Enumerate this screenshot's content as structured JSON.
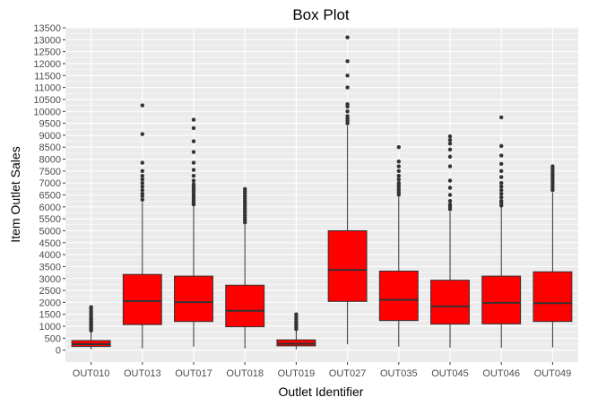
{
  "chart_data": {
    "type": "box",
    "title": "Box Plot",
    "xlabel": "Outlet Identifier",
    "ylabel": "Item Outlet Sales",
    "ylim": [
      -500,
      13500
    ],
    "yticks": [
      0,
      500,
      1000,
      1500,
      2000,
      2500,
      3000,
      3500,
      4000,
      4500,
      5000,
      5500,
      6000,
      6500,
      7000,
      7500,
      8000,
      8500,
      9000,
      9500,
      10000,
      10500,
      11000,
      11500,
      12000,
      12500,
      13000,
      13500
    ],
    "grid": true,
    "legend": "none",
    "colors": {
      "box_fill": "#ff0000",
      "box_stroke": "#333333",
      "panel": "#ebebeb",
      "grid": "#ffffff",
      "outlier": "#333333"
    },
    "categories": [
      "OUT010",
      "OUT013",
      "OUT017",
      "OUT018",
      "OUT019",
      "OUT027",
      "OUT035",
      "OUT045",
      "OUT046",
      "OUT049"
    ],
    "boxes": [
      {
        "category": "OUT010",
        "min": 33,
        "q1": 154,
        "median": 250,
        "q3": 400,
        "max": 770,
        "outliers": [
          820,
          870,
          920,
          970,
          1020,
          1070,
          1120,
          1170,
          1230,
          1290,
          1350,
          1450,
          1540,
          1620,
          1720,
          1800
        ]
      },
      {
        "category": "OUT013",
        "min": 73,
        "q1": 1070,
        "median": 2050,
        "q3": 3170,
        "max": 6200,
        "outliers": [
          6300,
          6450,
          6550,
          6700,
          6850,
          7000,
          7150,
          7300,
          7500,
          7850,
          9050,
          10250
        ]
      },
      {
        "category": "OUT017",
        "min": 143,
        "q1": 1200,
        "median": 2010,
        "q3": 3100,
        "max": 6050,
        "outliers": [
          6100,
          6150,
          6250,
          6350,
          6450,
          6550,
          6650,
          6750,
          6850,
          6950,
          7100,
          7300,
          7550,
          7850,
          8300,
          8750,
          9300,
          9650
        ]
      },
      {
        "category": "OUT018",
        "min": 69,
        "q1": 980,
        "median": 1650,
        "q3": 2720,
        "max": 5300,
        "outliers": [
          5350,
          5450,
          5550,
          5650,
          5750,
          5850,
          5950,
          6050,
          6150,
          6250,
          6350,
          6450,
          6550,
          6650,
          6750
        ]
      },
      {
        "category": "OUT019",
        "min": 33,
        "q1": 180,
        "median": 270,
        "q3": 430,
        "max": 820,
        "outliers": [
          880,
          950,
          1020,
          1100,
          1200,
          1300,
          1400,
          1500
        ]
      },
      {
        "category": "OUT027",
        "min": 242,
        "q1": 2040,
        "median": 3360,
        "q3": 5000,
        "max": 9400,
        "outliers": [
          9500,
          9600,
          9700,
          9800,
          10000,
          10200,
          10300,
          11000,
          11500,
          12100,
          13100
        ]
      },
      {
        "category": "OUT035",
        "min": 143,
        "q1": 1240,
        "median": 2110,
        "q3": 3310,
        "max": 6400,
        "outliers": [
          6500,
          6600,
          6700,
          6800,
          6900,
          7000,
          7150,
          7300,
          7500,
          7700,
          7900,
          8500
        ]
      },
      {
        "category": "OUT045",
        "min": 99,
        "q1": 1090,
        "median": 1830,
        "q3": 2930,
        "max": 5800,
        "outliers": [
          5900,
          6000,
          6100,
          6250,
          6500,
          6800,
          7100,
          7700,
          8100,
          8400,
          8650,
          8800,
          8950
        ]
      },
      {
        "category": "OUT046",
        "min": 99,
        "q1": 1100,
        "median": 1980,
        "q3": 3100,
        "max": 6000,
        "outliers": [
          6050,
          6150,
          6250,
          6400,
          6550,
          6700,
          6850,
          7000,
          7250,
          7500,
          7800,
          8150,
          8550,
          9750
        ]
      },
      {
        "category": "OUT049",
        "min": 112,
        "q1": 1200,
        "median": 1970,
        "q3": 3280,
        "max": 6600,
        "outliers": [
          6700,
          6800,
          6900,
          7000,
          7100,
          7200,
          7300,
          7400,
          7500,
          7600,
          7700
        ]
      }
    ]
  }
}
